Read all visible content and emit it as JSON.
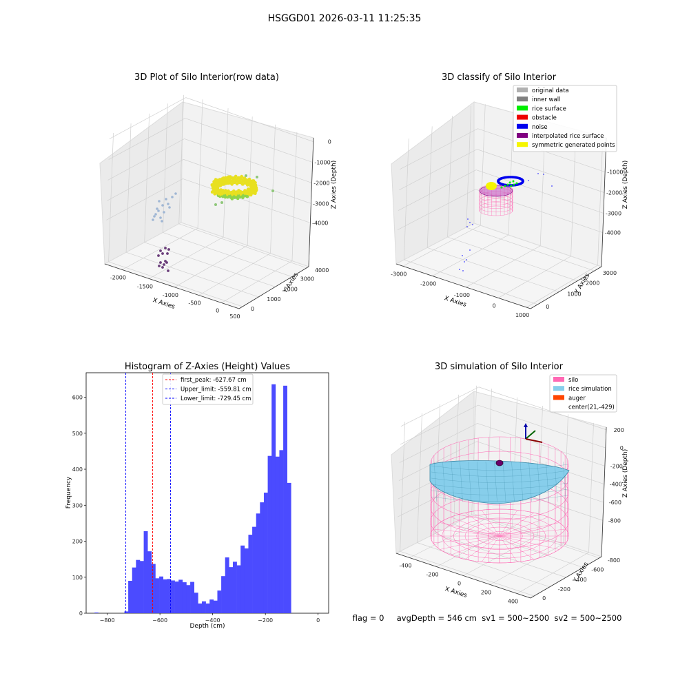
{
  "suptitle": "HSGGD01 2026-03-11 11:25:35",
  "status_line": "flag = 0     avgDepth = 546 cm  sv1 = 500~2500  sv2 = 500~2500",
  "chart_data": [
    {
      "type": "scatter",
      "title": "3D Plot of Silo Interior(row data)",
      "xlabel": "X Axies",
      "ylabel": "Y Axies",
      "zlabel": "Z Axies (Depth)",
      "x_ticks": [
        "-2000",
        "-1500",
        "-1000",
        "-500",
        "0",
        "500"
      ],
      "y_ticks": [
        "0",
        "1000",
        "2000",
        "3000",
        "4000"
      ],
      "z_ticks": [
        "0",
        "-1000",
        "-2000",
        "-3000",
        "-4000"
      ],
      "colormap": "viridis by depth",
      "colors": {
        "ring": "#e8e020",
        "ring_low": "#8fd34a",
        "sparse": "#9fb6d4",
        "deep": "#6a3d7a"
      },
      "clusters": [
        {
          "label": "surface ring",
          "x": -250,
          "y": 2700,
          "z": -2300
        },
        {
          "label": "sparse points",
          "x": -1400,
          "y": 0,
          "z": -2900
        },
        {
          "label": "deep points",
          "x": -900,
          "y": 0,
          "z": -4300
        }
      ]
    },
    {
      "type": "scatter",
      "title": "3D classify of Silo Interior",
      "xlabel": "X Axies",
      "ylabel": "Y Axies",
      "zlabel": "Z Axies (Depth)",
      "x_ticks": [
        "-3000",
        "-2000",
        "-1000",
        "0",
        "1000"
      ],
      "y_ticks": [
        "0",
        "1000",
        "2000",
        "3000"
      ],
      "z_ticks": [
        "-1000",
        "-2000",
        "-3000",
        "-4000"
      ],
      "legend_position": "top-right",
      "legend": [
        {
          "label": "original data",
          "color": "#b0b0b0"
        },
        {
          "label": "inner wall",
          "color": "#808080"
        },
        {
          "label": "rice surface",
          "color": "#00ee00"
        },
        {
          "label": "obstacle",
          "color": "#ee0000"
        },
        {
          "label": "noise",
          "color": "#0000ee"
        },
        {
          "label": "interpolated rice surface",
          "color": "#800080"
        },
        {
          "label": "symmetric generated points",
          "color": "#f5f500"
        }
      ]
    },
    {
      "type": "bar",
      "title": "Histogram of Z-Axies (Height) Values",
      "xlabel": "Depth (cm)",
      "ylabel": "Frequency",
      "xlim": [
        -880,
        40
      ],
      "ylim": [
        0,
        668
      ],
      "x_ticks": [
        -800,
        -600,
        -400,
        -200,
        0
      ],
      "y_ticks": [
        0,
        100,
        200,
        300,
        400,
        500,
        600
      ],
      "bar_color": "#4b4bff",
      "bin_start": -735,
      "bin_width": 14.7,
      "values": [
        5,
        90,
        127,
        148,
        145,
        228,
        172,
        137,
        97,
        102,
        94,
        95,
        91,
        88,
        93,
        86,
        78,
        87,
        57,
        27,
        33,
        27,
        38,
        35,
        63,
        103,
        155,
        128,
        143,
        133,
        188,
        180,
        218,
        240,
        277,
        308,
        335,
        437,
        636,
        435,
        453,
        632,
        362
      ],
      "outliers": [
        {
          "x": -848,
          "value": 2
        }
      ],
      "legend_position": "top-center",
      "lines": [
        {
          "label": "first_peak: -627.67 cm",
          "x": -627.67,
          "color": "#ff0000"
        },
        {
          "label": "Upper_limit: -559.81 cm",
          "x": -559.81,
          "color": "#0000ff"
        },
        {
          "label": "Lower_limit: -729.45 cm",
          "x": -729.45,
          "color": "#0000ff"
        }
      ]
    },
    {
      "type": "scatter",
      "title": "3D simulation of Silo Interior",
      "xlabel": "X Axies",
      "ylabel": "Y Axies",
      "zlabel": "Z Axies (Depth)",
      "x_ticks": [
        "-400",
        "-200",
        "0",
        "200",
        "400"
      ],
      "y_ticks": [
        "0",
        "-200",
        "-400",
        "-600",
        "-800"
      ],
      "z_ticks": [
        "200",
        "0",
        "-200",
        "-400",
        "-600",
        "-800"
      ],
      "legend_position": "top-right",
      "legend": [
        {
          "label": "silo",
          "color": "#ff69b4"
        },
        {
          "label": "rice simulation",
          "color": "#87ceeb"
        },
        {
          "label": "auger",
          "color": "#ff4500"
        },
        {
          "label": "center(21,-429)",
          "color": ""
        }
      ]
    }
  ]
}
